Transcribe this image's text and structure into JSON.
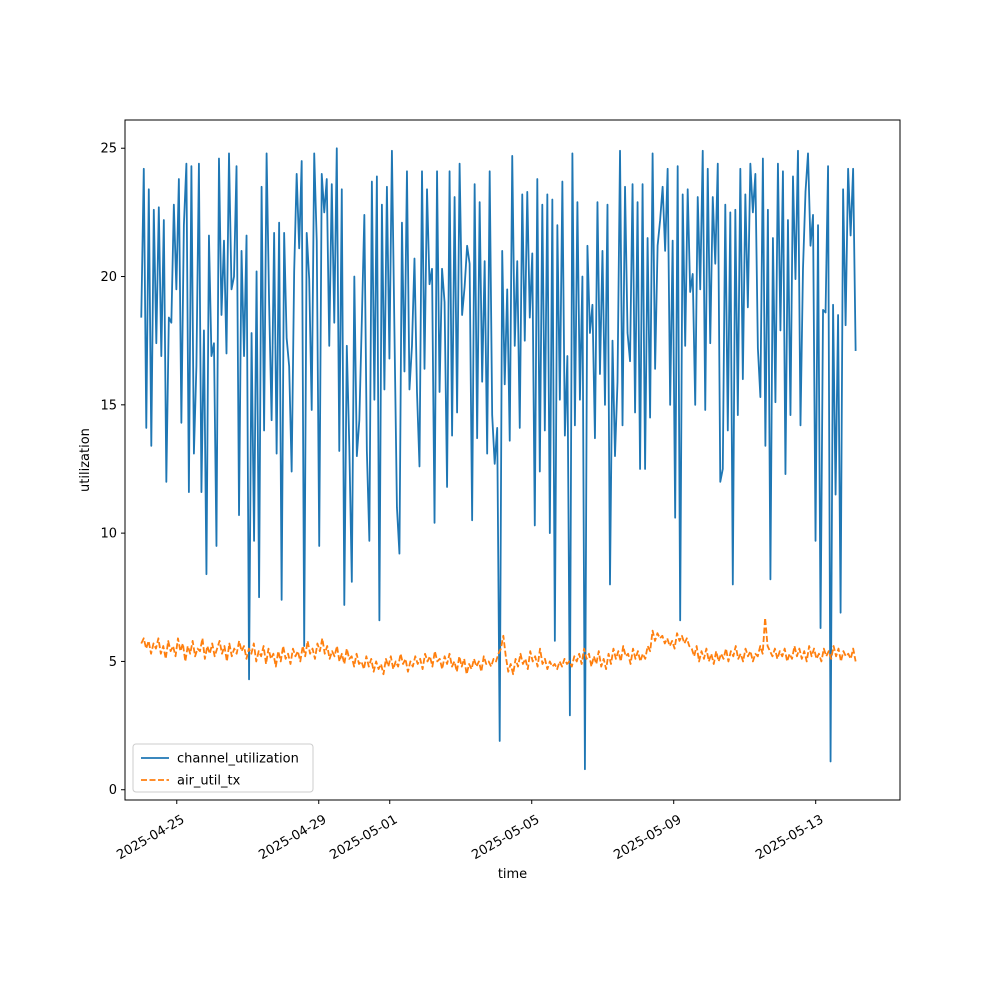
{
  "chart_data": {
    "type": "line",
    "title": "",
    "xlabel": "time",
    "ylabel": "utilization",
    "xlim": [
      "2025-04-23T13:00",
      "2025-05-15T09:00"
    ],
    "ylim": [
      -0.4,
      26.1
    ],
    "x_ticks": [
      "2025-04-25",
      "2025-04-29",
      "2025-05-01",
      "2025-05-05",
      "2025-05-09",
      "2025-05-13"
    ],
    "y_ticks": [
      0,
      5,
      10,
      15,
      20,
      25
    ],
    "grid": false,
    "legend": "lower-left",
    "x_start": "2025-04-24T00:00",
    "x_end": "2025-05-14T03:00",
    "series": [
      {
        "name": "channel_utilization",
        "color": "#1f77b4",
        "style": "solid",
        "values": [
          18.4,
          24.2,
          14.1,
          23.4,
          13.4,
          22.6,
          17.4,
          22.7,
          16.9,
          22.2,
          12.0,
          18.4,
          18.2,
          22.8,
          19.5,
          23.8,
          14.3,
          22.0,
          24.4,
          11.6,
          24.3,
          13.1,
          16.5,
          24.4,
          11.6,
          17.9,
          8.4,
          21.6,
          16.9,
          17.4,
          9.5,
          24.6,
          18.5,
          21.4,
          17.0,
          24.8,
          19.5,
          20.0,
          24.3,
          10.7,
          21.0,
          16.9,
          21.6,
          4.3,
          17.8,
          9.7,
          20.2,
          7.5,
          23.5,
          14.0,
          24.8,
          19.0,
          14.4,
          21.7,
          13.1,
          22.1,
          7.4,
          21.7,
          17.6,
          16.5,
          12.4,
          20.2,
          24.0,
          21.1,
          24.5,
          5.6,
          21.7,
          19.9,
          14.8,
          24.8,
          21.4,
          9.5,
          24.0,
          22.5,
          23.8,
          17.3,
          23.6,
          18.2,
          25.0,
          13.2,
          23.4,
          7.2,
          17.3,
          13.4,
          8.1,
          20.0,
          13.0,
          14.4,
          18.3,
          22.4,
          13.2,
          9.7,
          23.7,
          15.2,
          23.9,
          6.6,
          22.8,
          15.6,
          23.5,
          16.8,
          24.9,
          17.9,
          11.0,
          9.2,
          22.1,
          16.3,
          24.1,
          15.6,
          17.3,
          20.7,
          15.5,
          12.6,
          24.1,
          16.4,
          23.4,
          19.7,
          20.3,
          10.4,
          24.1,
          15.5,
          20.3,
          19.0,
          11.8,
          24.1,
          13.8,
          23.1,
          14.7,
          24.4,
          18.5,
          19.6,
          21.2,
          20.5,
          10.5,
          23.6,
          13.7,
          22.9,
          15.9,
          20.6,
          13.1,
          24.1,
          14.6,
          12.7,
          14.1,
          1.9,
          21.0,
          15.8,
          19.5,
          13.6,
          24.7,
          17.3,
          20.6,
          14.1,
          23.2,
          17.5,
          23.3,
          18.4,
          20.9,
          10.3,
          23.8,
          12.4,
          22.8,
          14.0,
          23.2,
          10.0,
          23.0,
          5.8,
          22.0,
          15.2,
          23.7,
          13.8,
          16.9,
          2.9,
          24.8,
          14.2,
          22.9,
          15.2,
          20.0,
          0.8,
          21.2,
          17.8,
          18.9,
          13.7,
          22.9,
          16.2,
          21.0,
          15.0,
          22.8,
          8.0,
          17.5,
          13.0,
          15.9,
          24.9,
          14.2,
          23.5,
          17.8,
          16.7,
          23.6,
          14.7,
          22.9,
          12.5,
          23.6,
          12.5,
          21.5,
          14.5,
          24.8,
          16.4,
          21.2,
          22.2,
          23.5,
          21.0,
          24.2,
          15.0,
          21.4,
          10.6,
          24.3,
          6.6,
          23.2,
          17.3,
          23.4,
          19.4,
          20.1,
          15.0,
          23.1,
          19.5,
          24.9,
          14.8,
          24.2,
          17.4,
          23.1,
          20.5,
          24.4,
          12.0,
          12.5,
          22.8,
          14.0,
          22.5,
          8.0,
          22.6,
          14.6,
          24.2,
          16.0,
          23.2,
          18.8,
          24.4,
          22.5,
          24.0,
          17.2,
          15.3,
          24.6,
          13.4,
          22.6,
          8.2,
          21.5,
          15.1,
          24.4,
          17.9,
          24.1,
          12.3,
          22.2,
          14.6,
          23.9,
          19.9,
          24.9,
          14.2,
          20.3,
          23.3,
          24.8,
          21.2,
          22.4,
          9.7,
          22.0,
          6.3,
          18.7,
          18.6,
          24.3,
          1.1,
          18.9,
          11.5,
          18.5,
          6.9,
          23.4,
          18.1,
          24.2,
          21.6,
          24.2,
          17.1
        ]
      },
      {
        "name": "air_util_tx",
        "color": "#ff7f0e",
        "style": "dashed",
        "values": [
          5.7,
          5.9,
          5.5,
          5.8,
          5.3,
          5.7,
          5.5,
          5.9,
          5.3,
          5.6,
          5.1,
          5.8,
          5.4,
          5.6,
          5.2,
          5.9,
          5.4,
          5.7,
          5.0,
          5.6,
          5.3,
          5.8,
          5.2,
          5.5,
          5.4,
          5.9,
          5.1,
          5.6,
          5.3,
          5.7,
          5.2,
          5.5,
          5.8,
          5.3,
          5.6,
          5.0,
          5.7,
          5.2,
          5.5,
          5.3,
          5.8,
          5.4,
          5.6,
          5.1,
          5.5,
          5.3,
          5.7,
          5.0,
          5.4,
          5.2,
          5.6,
          4.9,
          5.5,
          5.1,
          5.3,
          4.8,
          5.4,
          5.0,
          5.6,
          5.1,
          5.3,
          4.9,
          5.5,
          5.2,
          5.4,
          5.0,
          5.6,
          5.2,
          5.8,
          5.3,
          5.5,
          5.1,
          5.7,
          5.4,
          5.9,
          5.3,
          5.6,
          5.1,
          5.4,
          5.2,
          5.6,
          5.0,
          5.3,
          4.9,
          5.5,
          5.1,
          5.2,
          4.8,
          5.3,
          4.9,
          5.0,
          4.7,
          5.2,
          4.8,
          5.1,
          4.6,
          5.0,
          4.7,
          4.9,
          4.5,
          5.1,
          4.8,
          5.2,
          4.7,
          5.0,
          4.8,
          5.3,
          4.9,
          5.1,
          4.6,
          5.0,
          4.8,
          5.2,
          4.9,
          5.1,
          4.7,
          5.3,
          5.0,
          5.2,
          4.8,
          5.4,
          5.0,
          5.1,
          4.7,
          5.2,
          4.9,
          5.3,
          4.8,
          5.0,
          4.6,
          5.2,
          4.8,
          5.1,
          4.5,
          4.9,
          4.7,
          5.1,
          4.8,
          5.0,
          4.6,
          5.2,
          4.9,
          5.0,
          4.8,
          5.1,
          5.0,
          5.3,
          5.5,
          6.0,
          5.2,
          4.6,
          4.9,
          4.5,
          5.1,
          4.8,
          5.3,
          4.9,
          5.1,
          4.7,
          5.4,
          5.0,
          5.2,
          4.8,
          5.5,
          4.9,
          5.1,
          4.7,
          5.0,
          4.8,
          4.9,
          4.7,
          5.0,
          4.8,
          5.1,
          4.9,
          5.0,
          4.8,
          5.2,
          5.0,
          5.3,
          4.9,
          5.5,
          5.1,
          5.3,
          4.8,
          5.2,
          4.9,
          5.4,
          4.8,
          5.1,
          4.7,
          5.3,
          4.9,
          5.5,
          5.1,
          5.4,
          5.0,
          5.6,
          5.2,
          5.3,
          4.9,
          5.5,
          5.1,
          5.4,
          5.0,
          5.3,
          5.1,
          5.6,
          5.4,
          6.2,
          5.8,
          6.1,
          5.9,
          6.0,
          5.7,
          5.9,
          5.6,
          5.8,
          5.5,
          6.1,
          5.8,
          6.0,
          5.7,
          5.9,
          5.6,
          5.5,
          5.2,
          5.6,
          5.0,
          5.4,
          5.1,
          5.5,
          5.0,
          5.3,
          4.9,
          5.4,
          5.0,
          5.3,
          5.1,
          5.5,
          5.0,
          5.4,
          5.2,
          5.6,
          5.1,
          5.3,
          5.0,
          5.5,
          5.2,
          5.4,
          5.0,
          5.3,
          5.2,
          5.6,
          5.3,
          6.7,
          5.6,
          5.4,
          5.2,
          5.5,
          5.1,
          5.4,
          5.2,
          5.5,
          5.0,
          5.3,
          5.1,
          5.6,
          5.2,
          5.5,
          5.1,
          5.4,
          5.0,
          5.6,
          5.2,
          5.5,
          5.1,
          5.3,
          5.0,
          5.5,
          5.2,
          5.4,
          5.1,
          5.6,
          5.2,
          5.5,
          5.0,
          5.4,
          5.2,
          5.3,
          5.1,
          5.5,
          5.0
        ]
      }
    ]
  }
}
